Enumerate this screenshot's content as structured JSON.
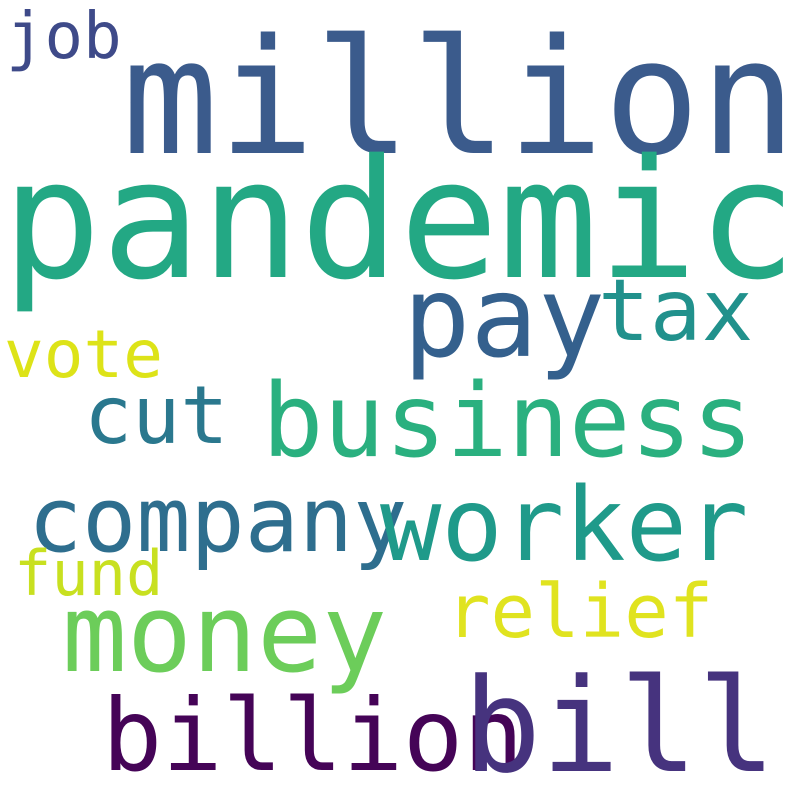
{
  "words": [
    {
      "id": "million",
      "text": "million",
      "color": "#3b5b8c"
    },
    {
      "id": "pandemic",
      "text": "pandemic",
      "color": "#23a884"
    },
    {
      "id": "pay",
      "text": "pay",
      "color": "#34608d"
    },
    {
      "id": "tax",
      "text": "tax",
      "color": "#21918c"
    },
    {
      "id": "vote",
      "text": "vote",
      "color": "#dde318"
    },
    {
      "id": "cut",
      "text": "cut",
      "color": "#2a788e"
    },
    {
      "id": "business",
      "text": "business",
      "color": "#2ab07f"
    },
    {
      "id": "company",
      "text": "company",
      "color": "#2e6e8e"
    },
    {
      "id": "worker",
      "text": "worker",
      "color": "#1f9a8a"
    },
    {
      "id": "fund",
      "text": "fund",
      "color": "#c8e020"
    },
    {
      "id": "relief",
      "text": "relief",
      "color": "#e0e31f"
    },
    {
      "id": "money",
      "text": "money",
      "color": "#6ccd5a"
    },
    {
      "id": "billion",
      "text": "billion",
      "color": "#450457"
    },
    {
      "id": "bill",
      "text": "bill",
      "color": "#46337e"
    },
    {
      "id": "job",
      "text": "job",
      "color": "#3e4a89"
    }
  ]
}
